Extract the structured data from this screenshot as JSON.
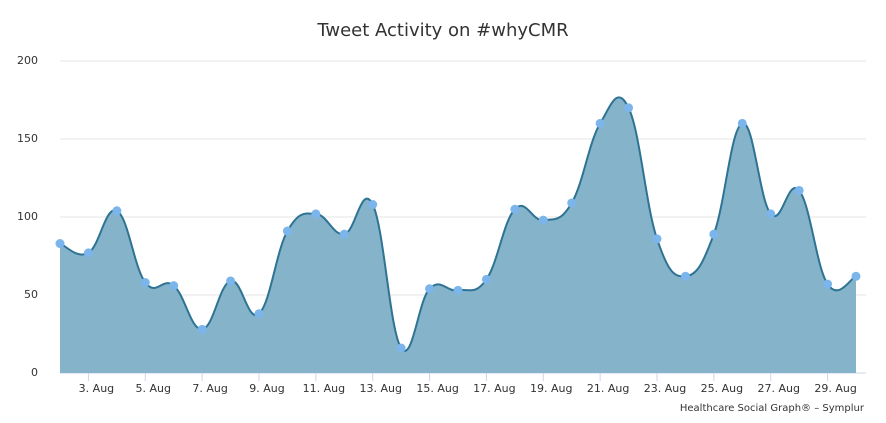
{
  "chart_data": {
    "type": "area",
    "title": "Tweet Activity on #whyCMR",
    "credit": "Healthcare Social Graph® – Symplur",
    "categories": [
      null,
      "3. Aug",
      null,
      "5. Aug",
      null,
      "7. Aug",
      null,
      "9. Aug",
      null,
      "11. Aug",
      null,
      "13. Aug",
      null,
      "15. Aug",
      null,
      "17. Aug",
      null,
      "19. Aug",
      null,
      "21. Aug",
      null,
      "23. Aug",
      null,
      "25. Aug",
      null,
      "27. Aug",
      null,
      "29. Aug",
      null
    ],
    "values": [
      83,
      77,
      104,
      58,
      56,
      28,
      59,
      38,
      91,
      102,
      89,
      108,
      16,
      54,
      53,
      60,
      105,
      98,
      109,
      160,
      170,
      86,
      62,
      89,
      160,
      102,
      117,
      57,
      62
    ],
    "color": "#2e7394",
    "fill_color": "#85b3c9",
    "marker_color": "#7cb5ec",
    "ylim": [
      0,
      200
    ],
    "yticks": [
      0,
      50,
      100,
      150,
      200
    ],
    "grid": true
  }
}
